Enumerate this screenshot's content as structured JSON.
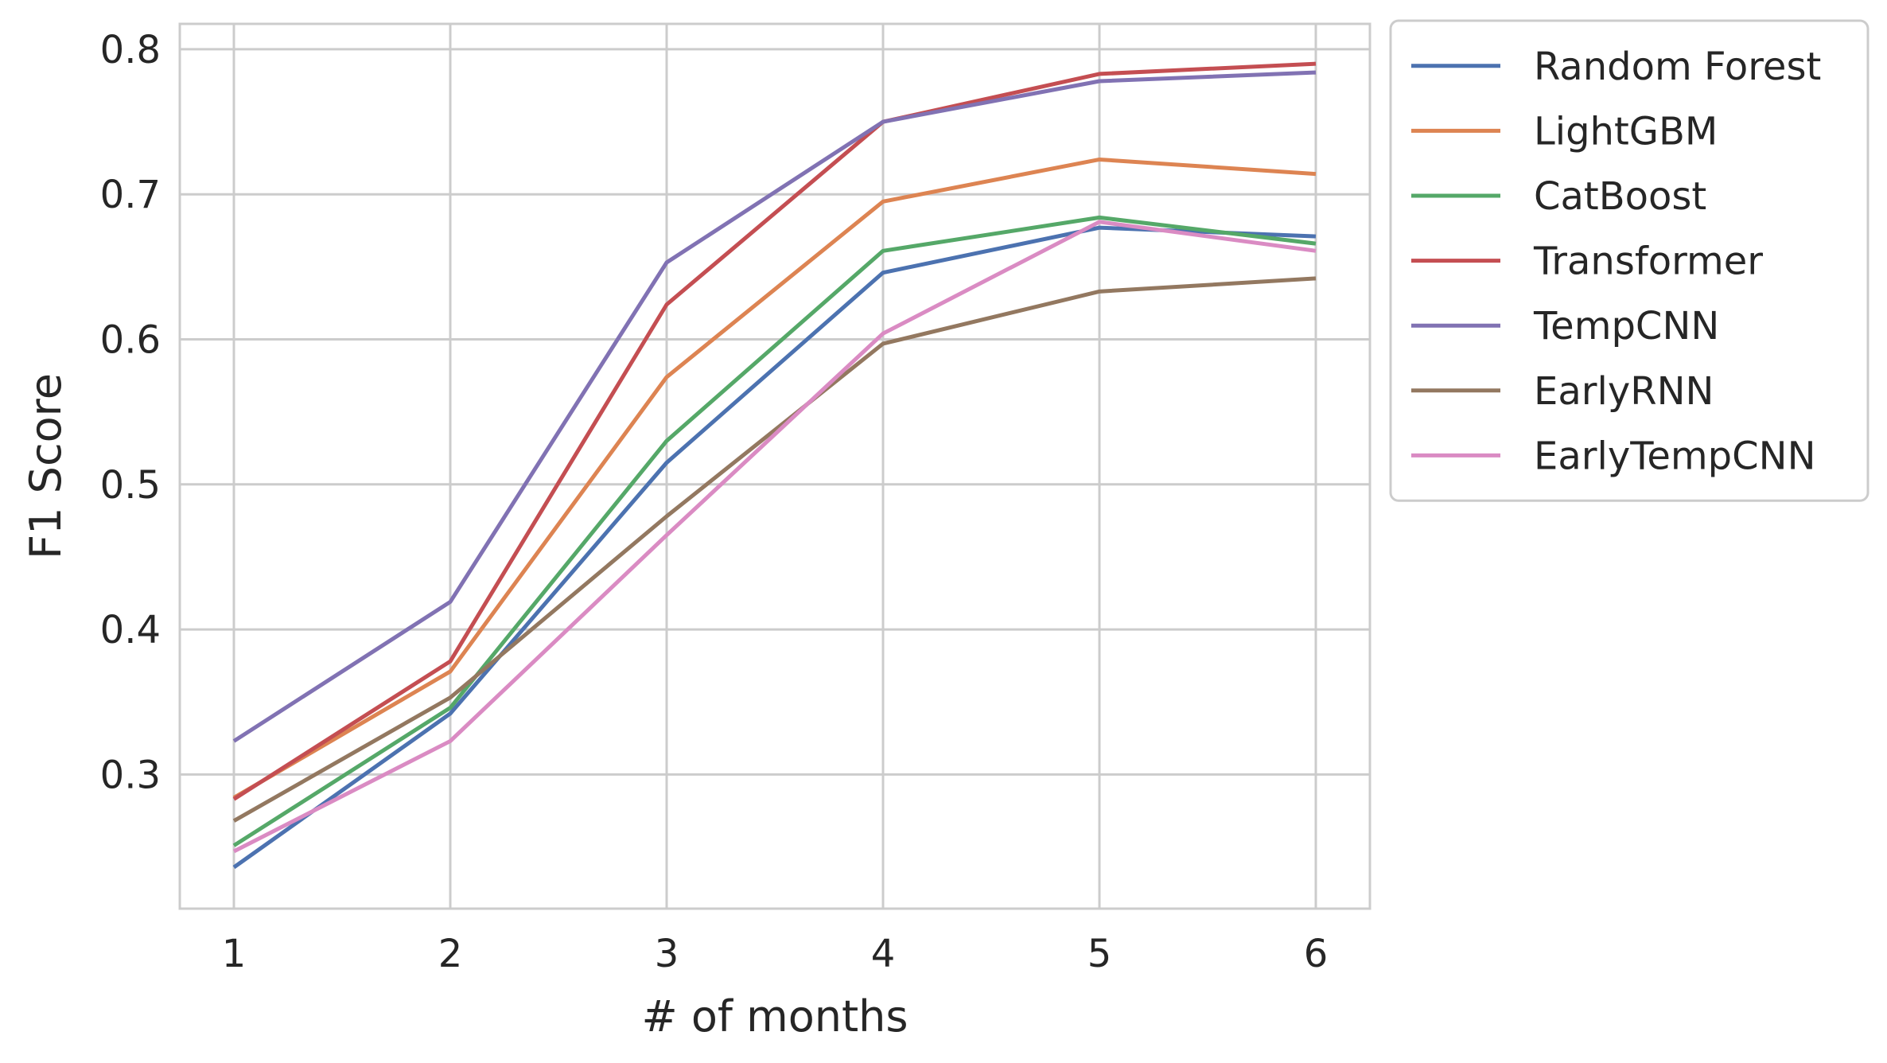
{
  "chart_data": {
    "type": "line",
    "title": "",
    "xlabel": "# of months",
    "ylabel": "F1 Score",
    "x": [
      1,
      2,
      3,
      4,
      5,
      6
    ],
    "xlim": [
      0.75,
      6.25
    ],
    "ylim": [
      0.2075,
      0.8175
    ],
    "yticks": [
      0.3,
      0.4,
      0.5,
      0.6,
      0.7,
      0.8
    ],
    "ytick_labels": [
      "0.3",
      "0.4",
      "0.5",
      "0.6",
      "0.7",
      "0.8"
    ],
    "xtick_labels": [
      "1",
      "2",
      "3",
      "4",
      "5",
      "6"
    ],
    "grid": true,
    "legend_position": "outside upper right",
    "series": [
      {
        "name": "Random Forest",
        "color": "#4c72b0",
        "values": [
          0.236,
          0.342,
          0.515,
          0.646,
          0.677,
          0.671
        ]
      },
      {
        "name": "LightGBM",
        "color": "#dd8452",
        "values": [
          0.284,
          0.371,
          0.574,
          0.695,
          0.724,
          0.714
        ]
      },
      {
        "name": "CatBoost",
        "color": "#55a868",
        "values": [
          0.251,
          0.346,
          0.53,
          0.661,
          0.684,
          0.666
        ]
      },
      {
        "name": "Transformer",
        "color": "#c44e52",
        "values": [
          0.283,
          0.378,
          0.624,
          0.75,
          0.783,
          0.79
        ]
      },
      {
        "name": "TempCNN",
        "color": "#8172b3",
        "values": [
          0.323,
          0.419,
          0.653,
          0.75,
          0.778,
          0.784
        ]
      },
      {
        "name": "EarlyRNN",
        "color": "#937860",
        "values": [
          0.268,
          0.353,
          0.478,
          0.597,
          0.633,
          0.642
        ]
      },
      {
        "name": "EarlyTempCNN",
        "color": "#da8bc3",
        "values": [
          0.247,
          0.323,
          0.465,
          0.604,
          0.681,
          0.661
        ]
      }
    ],
    "colors": {
      "grid": "#cccccc",
      "frame": "#cccccc",
      "text": "#262626"
    }
  }
}
